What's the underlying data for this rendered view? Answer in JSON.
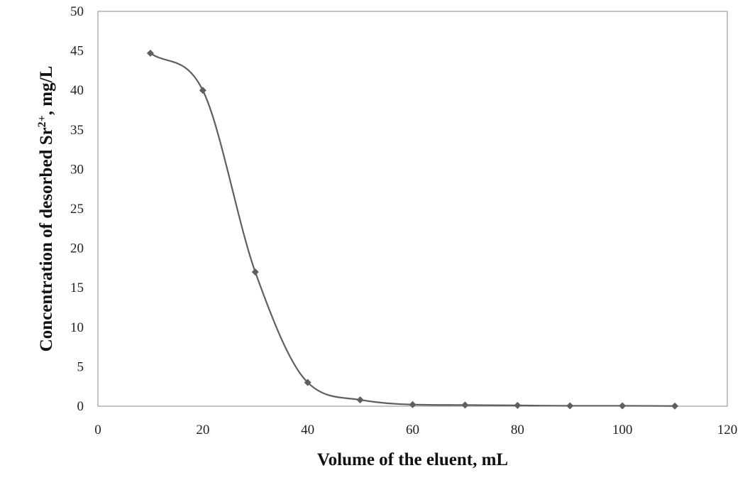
{
  "chart_data": {
    "type": "line",
    "title": "",
    "xlabel": "Volume of the eluent, mL",
    "ylabel": {
      "prefix": "Concentration of desorbed  Sr",
      "superscript": "2+",
      "suffix": ", mg/L"
    },
    "xlim": [
      0,
      120
    ],
    "ylim": [
      0,
      50
    ],
    "x_ticks": [
      0,
      20,
      40,
      60,
      80,
      100,
      120
    ],
    "y_ticks": [
      0,
      5,
      10,
      15,
      20,
      25,
      30,
      35,
      40,
      45,
      50
    ],
    "grid": false,
    "legend": "none",
    "smooth": true,
    "series": [
      {
        "x": [
          10,
          20,
          30,
          40,
          50,
          60,
          70,
          80,
          90,
          100,
          110
        ],
        "y": [
          44.7,
          40.0,
          17.0,
          3.0,
          0.8,
          0.2,
          0.15,
          0.1,
          0.05,
          0.05,
          0.02
        ],
        "color": "#5f5f5f",
        "marker": "diamond"
      }
    ]
  }
}
